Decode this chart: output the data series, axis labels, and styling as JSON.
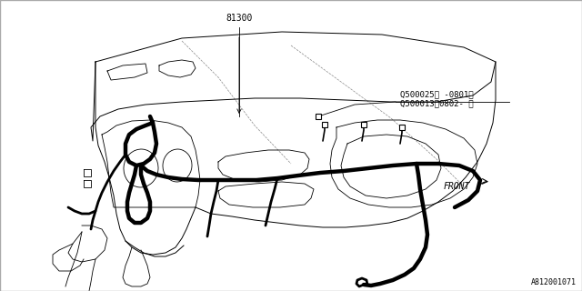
{
  "bg_color": "#ffffff",
  "line_color": "#000000",
  "gray_color": "#888888",
  "label_81300": "81300",
  "label_q1_raw": "Q500025（ -0801）",
  "label_q2_raw": "Q500013（0802- ）",
  "label_front": "FRONT",
  "label_part": "A812001071",
  "font_size_labels": 7,
  "font_size_part": 6
}
